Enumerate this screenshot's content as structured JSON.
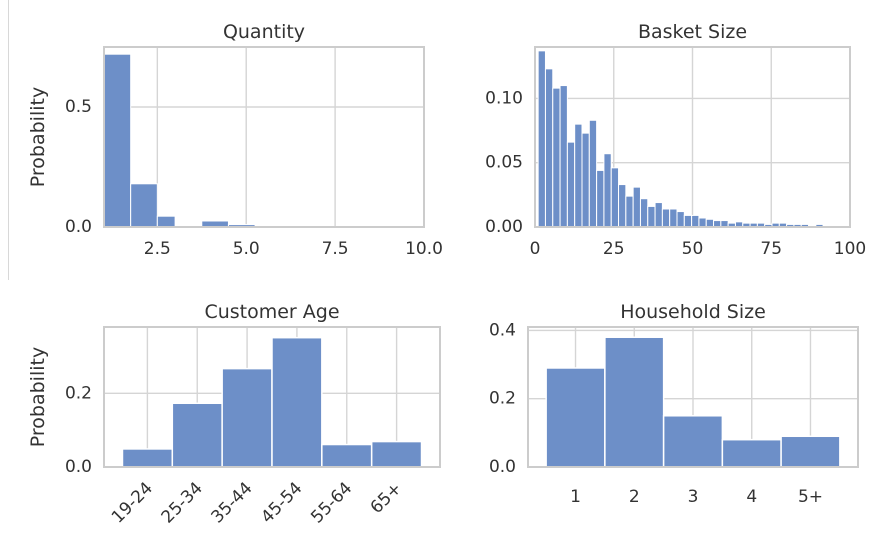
{
  "chart_data": [
    {
      "type": "bar",
      "subtype": "histogram",
      "title": "Quantity",
      "ylabel": "Probability",
      "xlim": [
        1,
        10
      ],
      "ylim": [
        0,
        0.75
      ],
      "xticks": [
        2.5,
        5.0,
        7.5,
        10.0
      ],
      "xtick_labels": [
        "2.5",
        "5.0",
        "7.5",
        "10.0"
      ],
      "yticks": [
        0,
        0.5
      ],
      "ytick_labels": [
        "0.0",
        "0.5"
      ],
      "grid": true,
      "bins": [
        {
          "x0": 1.0,
          "x1": 1.75,
          "value": 0.72
        },
        {
          "x0": 1.75,
          "x1": 2.5,
          "value": 0.18
        },
        {
          "x0": 2.5,
          "x1": 3.0,
          "value": 0.045
        },
        {
          "x0": 3.75,
          "x1": 4.5,
          "value": 0.025
        },
        {
          "x0": 4.5,
          "x1": 5.25,
          "value": 0.01
        },
        {
          "x0": 5.25,
          "x1": 6.0,
          "value": 0.003
        },
        {
          "x0": 6.0,
          "x1": 6.75,
          "value": 0.002
        },
        {
          "x0": 6.75,
          "x1": 7.5,
          "value": 0.001
        },
        {
          "x0": 7.5,
          "x1": 8.25,
          "value": 0.001
        },
        {
          "x0": 8.25,
          "x1": 9.0,
          "value": 0.001
        },
        {
          "x0": 9.0,
          "x1": 9.75,
          "value": 0.001
        }
      ]
    },
    {
      "type": "bar",
      "subtype": "histogram",
      "title": "Basket Size",
      "ylabel": "",
      "xlim": [
        0,
        100
      ],
      "ylim": [
        0,
        0.14
      ],
      "xticks": [
        0,
        25,
        50,
        75,
        100
      ],
      "xtick_labels": [
        "0",
        "25",
        "50",
        "75",
        "100"
      ],
      "yticks": [
        0,
        0.05,
        0.1
      ],
      "ytick_labels": [
        "0.00",
        "0.05",
        "0.10"
      ],
      "grid": true,
      "bin_start": 1,
      "bin_width": 2.32,
      "values": [
        0.137,
        0.123,
        0.108,
        0.11,
        0.066,
        0.08,
        0.073,
        0.083,
        0.044,
        0.057,
        0.046,
        0.033,
        0.024,
        0.031,
        0.022,
        0.016,
        0.019,
        0.014,
        0.014,
        0.012,
        0.009,
        0.009,
        0.007,
        0.006,
        0.005,
        0.005,
        0.003,
        0.004,
        0.003,
        0.003,
        0.003,
        0.002,
        0.003,
        0.003,
        0.002,
        0.002,
        0.002,
        0.001,
        0.002,
        0.001
      ]
    },
    {
      "type": "bar",
      "title": "Customer Age",
      "ylabel": "Probability",
      "categories": [
        "19-24",
        "25-34",
        "35-44",
        "45-54",
        "55-64",
        "65+"
      ],
      "values": [
        0.049,
        0.173,
        0.267,
        0.351,
        0.061,
        0.069
      ],
      "ylim": [
        0,
        0.38
      ],
      "yticks": [
        0,
        0.2
      ],
      "ytick_labels": [
        "0.0",
        "0.2"
      ],
      "grid": true
    },
    {
      "type": "bar",
      "title": "Household Size",
      "ylabel": "",
      "categories": [
        "1",
        "2",
        "3",
        "4",
        "5+"
      ],
      "values": [
        0.29,
        0.38,
        0.15,
        0.08,
        0.09
      ],
      "ylim": [
        0,
        0.41
      ],
      "yticks": [
        0,
        0.2,
        0.4
      ],
      "ytick_labels": [
        "0.0",
        "0.2",
        "0.4"
      ],
      "grid": true
    }
  ],
  "colors": {
    "bar_fill": "#6d8fc8",
    "bar_stroke": "#ffffff",
    "grid": "#d5d5d5",
    "spine": "#cccccc",
    "text": "#333333"
  }
}
